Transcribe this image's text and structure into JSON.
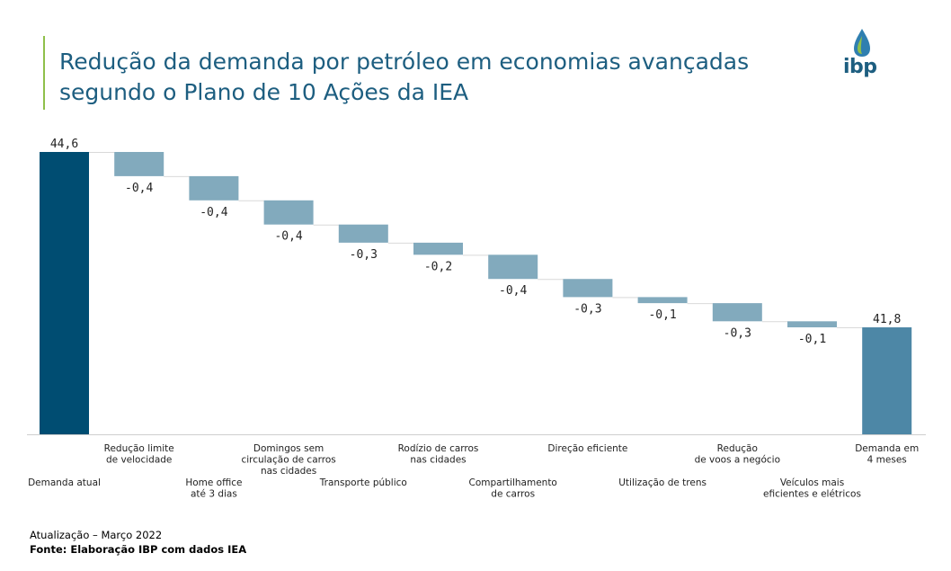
{
  "title": "Redução da demanda por petróleo em economias avançadas segundo o Plano de 10 Ações da IEA",
  "logo": {
    "text": "ibp",
    "icon": "flame-drop-icon"
  },
  "footer": {
    "update": "Atualização – Março 2022",
    "source": "Fonte: Elaboração IBP com dados IEA"
  },
  "colors": {
    "total_start": "#004d72",
    "total_end": "#4d87a6",
    "step": "#82aabd",
    "title": "#1d5e80",
    "accent": "#8fc04a"
  },
  "chart_data": {
    "type": "waterfall",
    "title": "Redução da demanda por petróleo em economias avançadas segundo o Plano de 10 Ações da IEA",
    "ylim": [
      0,
      44.6
    ],
    "categories": [
      {
        "label": [
          "Demanda atual"
        ],
        "value": 44.6,
        "value_label": "44,6",
        "kind": "total"
      },
      {
        "label": [
          "Redução limite",
          "de velocidade"
        ],
        "value": -0.4,
        "value_label": "-0,4",
        "kind": "step"
      },
      {
        "label": [
          "Home office",
          "até 3 dias"
        ],
        "value": -0.4,
        "value_label": "-0,4",
        "kind": "step"
      },
      {
        "label": [
          "Domingos sem",
          "circulação de carros",
          "nas cidades"
        ],
        "value": -0.4,
        "value_label": "-0,4",
        "kind": "step"
      },
      {
        "label": [
          "Transporte público"
        ],
        "value": -0.3,
        "value_label": "-0,3",
        "kind": "step"
      },
      {
        "label": [
          "Rodízio de carros",
          "nas cidades"
        ],
        "value": -0.2,
        "value_label": "-0,2",
        "kind": "step"
      },
      {
        "label": [
          "Compartilhamento",
          "de carros"
        ],
        "value": -0.4,
        "value_label": "-0,4",
        "kind": "step"
      },
      {
        "label": [
          "Direção eficiente"
        ],
        "value": -0.3,
        "value_label": "-0,3",
        "kind": "step"
      },
      {
        "label": [
          "Utilização de trens"
        ],
        "value": -0.1,
        "value_label": "-0,1",
        "kind": "step"
      },
      {
        "label": [
          "Redução",
          "de voos a negócio"
        ],
        "value": -0.3,
        "value_label": "-0,3",
        "kind": "step"
      },
      {
        "label": [
          "Veículos mais",
          "eficientes e elétricos"
        ],
        "value": -0.1,
        "value_label": "-0,1",
        "kind": "step"
      },
      {
        "label": [
          "Demanda em",
          "4 meses"
        ],
        "value": 41.8,
        "value_label": "41,8",
        "kind": "total"
      }
    ]
  }
}
